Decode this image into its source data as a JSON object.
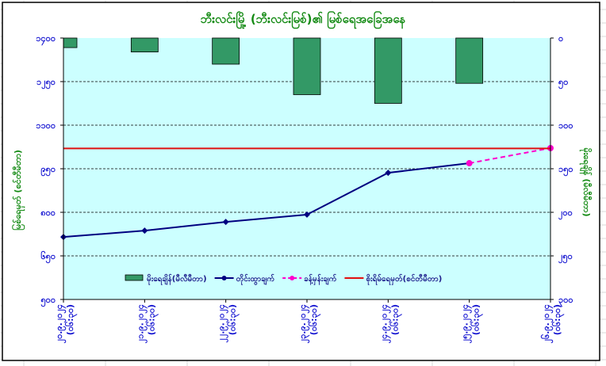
{
  "chart_data": {
    "type": "bar+line",
    "title": "ဘီးလင်းမြို့ (ဘီးလင်းမြစ်)၏ မြစ်ရေအခြေအနေ",
    "ylabel_left": "မြစ်ရေမှတ် (စင်တီမီတာ)",
    "ylabel_right": "မိုးရေချိန် (မီလီမီတာ)",
    "ylim_left": [
      500,
      1400
    ],
    "yticks_left": [
      "၅၀၀",
      "၆၅၀",
      "၈၀၀",
      "၉၅၀",
      "၁၁၀၀",
      "၁၂၅၀",
      "၁၄၀၀"
    ],
    "ylim_right": [
      0,
      300
    ],
    "right_axis_inverted": true,
    "yticks_right": [
      "၀",
      "၅၀",
      "၁၀၀",
      "၁၅၀",
      "၂၀၀",
      "၂၅၀",
      "၃၀၀"
    ],
    "categories": [
      [
        "၂၀.၉.၂၀၂၄",
        "(၀၆:၃၀)"
      ],
      [
        "၂၁.၉.၂၀၂၄",
        "(၀၆:၃၀)"
      ],
      [
        "၂၂.၉.၂၀၂၄",
        "(၀၆:၃၀)"
      ],
      [
        "၂၃.၉.၂၀၂၄",
        "(၀၆:၃၀)"
      ],
      [
        "၂၄.၉.၂၀၂၄",
        "(၀၆:၃၀)"
      ],
      [
        "၂၅.၉.၂၀၂၄",
        "(၀၆:၃၀)"
      ],
      [
        "၂၆.၉.၂၀၂၄",
        "(၀၆:၃၀)"
      ]
    ],
    "grid": "horizontal dashed",
    "legend_position": "bottom-inside",
    "series": [
      {
        "name": "မိုးရေချိန်(မီလီမီတာ)",
        "type": "bar",
        "axis": "right",
        "color": "#339966",
        "values": [
          11,
          16,
          30,
          65,
          75,
          52,
          null
        ]
      },
      {
        "name": "တိုင်းထွာချက်",
        "type": "line",
        "axis": "left",
        "color": "#000080",
        "values": [
          715,
          737,
          767,
          792,
          936,
          969,
          null
        ]
      },
      {
        "name": "ခန့်မှန်းချက်",
        "type": "line-dashed",
        "axis": "left",
        "color": "#ff00cc",
        "values": [
          null,
          null,
          null,
          null,
          null,
          969,
          1021
        ]
      },
      {
        "name": "စိုးရိမ်ရေမှတ်(စင်တီမီတာ)",
        "type": "hline",
        "axis": "left",
        "color": "#e01010",
        "value": 1020
      }
    ]
  }
}
